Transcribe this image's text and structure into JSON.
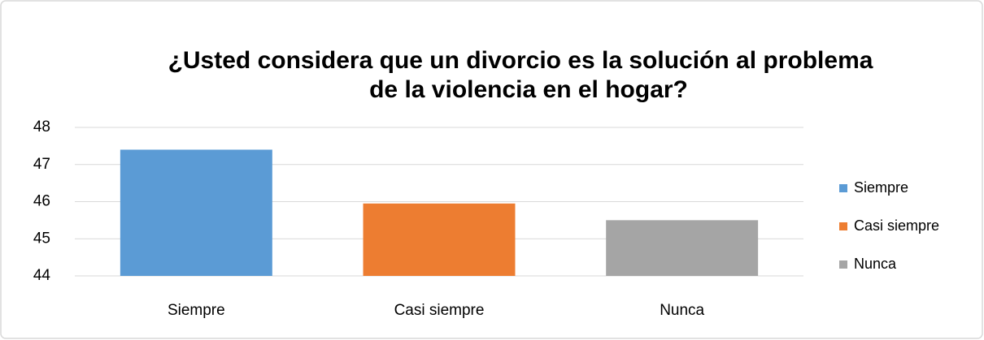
{
  "chart_data": {
    "type": "bar",
    "title": [
      "¿Usted considera que un divorcio es la solución al problema",
      "de la violencia en el hogar?"
    ],
    "categories": [
      "Siempre",
      "Casi siempre",
      "Nunca"
    ],
    "values": [
      47.4,
      45.95,
      45.5
    ],
    "colors": [
      "#5b9bd5",
      "#ed7d31",
      "#a5a5a5"
    ],
    "ylim": [
      44,
      48
    ],
    "yticks": [
      44,
      45,
      46,
      47,
      48
    ],
    "grid": true,
    "legend": "right"
  }
}
